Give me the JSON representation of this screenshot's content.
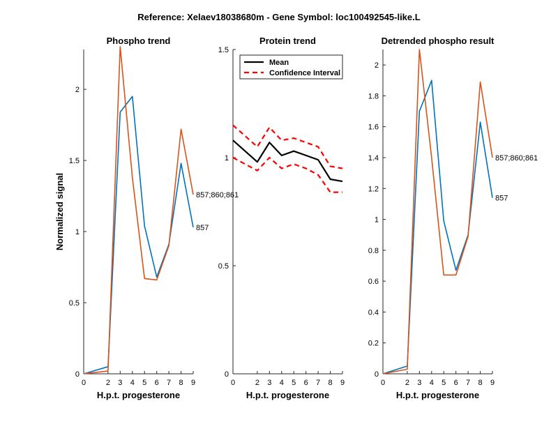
{
  "figure": {
    "title": "Reference:  Xelaev18038680m - Gene Symbol:  loc100492545-like.L"
  },
  "chart_data": [
    {
      "type": "line",
      "title": "Phospho trend",
      "xlabel": "H.p.t. progesterone",
      "ylabel": "Normalized signal",
      "x": [
        0,
        2,
        3,
        4,
        5,
        6,
        7,
        8,
        9
      ],
      "xticks": [
        "0",
        "2",
        "3",
        "4",
        "5",
        "6",
        "7",
        "8",
        "9"
      ],
      "ylim": [
        0,
        2.28
      ],
      "yticks": [
        0,
        0.5,
        1,
        1.5,
        2
      ],
      "ytick_labels": [
        "0",
        "0.5",
        "1",
        "1.5",
        "2"
      ],
      "series": [
        {
          "name": "857",
          "color": "#0072bd",
          "values": [
            0.0,
            0.05,
            1.84,
            1.95,
            1.04,
            0.68,
            0.91,
            1.48,
            1.03
          ]
        },
        {
          "name": "857;860;861",
          "color": "#d95319",
          "values": [
            0.0,
            0.02,
            2.3,
            1.38,
            0.67,
            0.66,
            0.9,
            1.72,
            1.26
          ]
        }
      ]
    },
    {
      "type": "line",
      "title": "Protein trend",
      "xlabel": "H.p.t. progesterone",
      "ylabel": "",
      "x": [
        0,
        2,
        3,
        4,
        5,
        6,
        7,
        8,
        9
      ],
      "xticks": [
        "0",
        "2",
        "3",
        "4",
        "5",
        "6",
        "7",
        "8",
        "9"
      ],
      "ylim": [
        0,
        1.5
      ],
      "yticks": [
        0,
        0.5,
        1,
        1.5
      ],
      "ytick_labels": [
        "0",
        "0.5",
        "1",
        "1.5"
      ],
      "legend": {
        "position": "top-left",
        "entries": [
          "Mean",
          "Confidence Interval"
        ]
      },
      "series": [
        {
          "name": "Mean",
          "color": "#000000",
          "style": "solid",
          "values": [
            1.08,
            0.98,
            1.07,
            1.01,
            1.03,
            1.01,
            0.99,
            0.9,
            0.89
          ]
        },
        {
          "name": "Confidence Interval",
          "color": "#ff0000",
          "style": "dashed",
          "values": [
            1.15,
            1.05,
            1.14,
            1.08,
            1.09,
            1.07,
            1.05,
            0.96,
            0.95
          ]
        },
        {
          "name": "Confidence Interval",
          "color": "#ff0000",
          "style": "dashed",
          "values": [
            1.0,
            0.94,
            1.0,
            0.95,
            0.97,
            0.95,
            0.92,
            0.84,
            0.84
          ]
        }
      ]
    },
    {
      "type": "line",
      "title": "Detrended phospho result",
      "xlabel": "H.p.t. progesterone",
      "ylabel": "",
      "x": [
        0,
        2,
        3,
        4,
        5,
        6,
        7,
        8,
        9
      ],
      "xticks": [
        "0",
        "2",
        "3",
        "4",
        "5",
        "6",
        "7",
        "8",
        "9"
      ],
      "ylim": [
        0,
        2.1
      ],
      "yticks": [
        0,
        0.2,
        0.4,
        0.6,
        0.8,
        1,
        1.2,
        1.4,
        1.6,
        1.8,
        2
      ],
      "ytick_labels": [
        "0",
        "0.2",
        "0.4",
        "0.6",
        "0.8",
        "1",
        "1.2",
        "1.4",
        "1.6",
        "1.8",
        "2"
      ],
      "series": [
        {
          "name": "857",
          "color": "#0072bd",
          "values": [
            0.0,
            0.05,
            1.7,
            1.9,
            0.99,
            0.67,
            0.9,
            1.63,
            1.14
          ]
        },
        {
          "name": "857;860;861",
          "color": "#d95319",
          "values": [
            0.0,
            0.03,
            2.1,
            1.4,
            0.64,
            0.64,
            0.89,
            1.89,
            1.4
          ]
        }
      ]
    }
  ]
}
